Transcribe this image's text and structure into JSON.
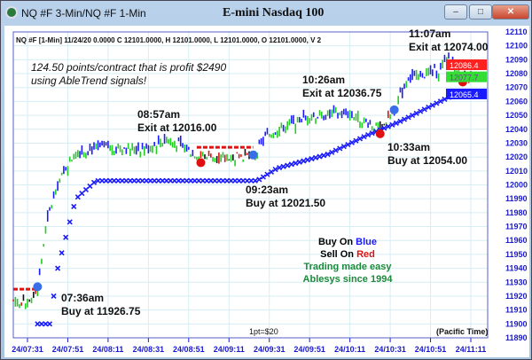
{
  "window": {
    "title": "NQ #F 3-Min/NQ #F 1-Min",
    "chart_title": "E-mini Nasdaq 100",
    "buttons": [
      "minimize",
      "maximize",
      "close"
    ]
  },
  "info_line": "NQ #F [1-Min] 11/24/20  0.0000 C 12101.0000, H 12101.0000, L 12101.0000, O 12101.0000, V 2",
  "promo": {
    "line1": "124.50 points/contract that is profit $2490",
    "line2": "using AbleTrend signals!"
  },
  "legend": {
    "buy_prefix": "Buy On ",
    "buy_color_word": "Blue",
    "sell_prefix": "Sell On ",
    "sell_color_word": "Red",
    "line3": "Trading made easy",
    "line4": "Ablesys since 1994"
  },
  "footer": {
    "scale": "1pt=$20",
    "timezone": "(Pacific Time)"
  },
  "colors": {
    "buy": "#1a1aff",
    "sell": "#e01010",
    "up_bar": "#22cc22",
    "tagline": "#1a8a3a",
    "axis": "#1a1acc"
  },
  "chart_data": {
    "type": "bar",
    "title": "E-mini Nasdaq 100",
    "xlabel": "",
    "ylabel": "",
    "ylim": [
      11890,
      12110
    ],
    "y_ticks": [
      12110,
      12100,
      12090,
      12080,
      12070,
      12060,
      12050,
      12040,
      12030,
      12020,
      12010,
      12000,
      11990,
      11980,
      11970,
      11960,
      11950,
      11940,
      11930,
      11920,
      11910,
      11900,
      11890
    ],
    "x_ticks": [
      "24/07:31",
      "24/07:51",
      "24/08:11",
      "24/08:31",
      "24/08:51",
      "24/09:11",
      "24/09:31",
      "24/09:51",
      "24/10:11",
      "24/10:31",
      "24/10:51",
      "24/11:11"
    ],
    "grid": true,
    "price_path": [
      [
        "07:24",
        11917
      ],
      [
        "07:30",
        11915
      ],
      [
        "07:36",
        11924
      ],
      [
        "07:40",
        11968
      ],
      [
        "07:45",
        11998
      ],
      [
        "07:50",
        12012
      ],
      [
        "07:55",
        12024
      ],
      [
        "08:10",
        12027
      ],
      [
        "08:30",
        12026
      ],
      [
        "08:40",
        12033
      ],
      [
        "08:55",
        12022
      ],
      [
        "09:10",
        12020
      ],
      [
        "09:23",
        12021
      ],
      [
        "09:30",
        12036
      ],
      [
        "09:50",
        12049
      ],
      [
        "10:10",
        12052
      ],
      [
        "10:26",
        12040
      ],
      [
        "10:33",
        12054
      ],
      [
        "10:40",
        12077
      ],
      [
        "10:55",
        12082
      ],
      [
        "11:00",
        12092
      ],
      [
        "11:07",
        12075
      ],
      [
        "11:11",
        12077
      ]
    ],
    "stop_buy_path": [
      [
        "07:36",
        11900
      ],
      [
        "07:42",
        11900
      ],
      [
        "07:46",
        11940
      ],
      [
        "07:55",
        11990
      ],
      [
        "08:05",
        12003
      ],
      [
        "09:25",
        12003
      ],
      [
        "09:35",
        12012
      ],
      [
        "10:00",
        12022
      ],
      [
        "10:20",
        12036
      ],
      [
        "10:35",
        12045
      ],
      [
        "11:00",
        12063
      ],
      [
        "11:11",
        12065
      ]
    ],
    "stop_sell_path": [
      [
        "07:24",
        11925
      ],
      [
        "07:36",
        11925
      ],
      [
        "08:55",
        12027
      ],
      [
        "09:23",
        12027
      ],
      [
        "11:07",
        12086
      ],
      [
        "11:11",
        12086
      ]
    ],
    "price_markers": [
      {
        "label": "12086.4",
        "value": 12086.4,
        "color": "#ff2020"
      },
      {
        "label": "12077.7",
        "value": 12077.7,
        "color": "#33dd33"
      },
      {
        "label": "12065.4",
        "value": 12065.4,
        "color": "#1a1aff"
      }
    ],
    "annotations": [
      {
        "time": "07:36",
        "price": 11926.75,
        "type": "buy",
        "line1": "07:36am",
        "line2": "Buy at 11926.75"
      },
      {
        "time": "08:57",
        "price": 12016.0,
        "type": "exit",
        "line1": "08:57am",
        "line2": "Exit at 12016.00"
      },
      {
        "time": "09:23",
        "price": 12021.5,
        "type": "buy",
        "line1": "09:23am",
        "line2": "Buy at 12021.50"
      },
      {
        "time": "10:26",
        "price": 12036.75,
        "type": "exit",
        "line1": "10:26am",
        "line2": "Exit at 12036.75"
      },
      {
        "time": "10:33",
        "price": 12054.0,
        "type": "buy",
        "line1": "10:33am",
        "line2": "Buy at 12054.00"
      },
      {
        "time": "11:07",
        "price": 12074.0,
        "type": "exit",
        "line1": "11:07am",
        "line2": "Exit at 12074.00"
      }
    ]
  }
}
